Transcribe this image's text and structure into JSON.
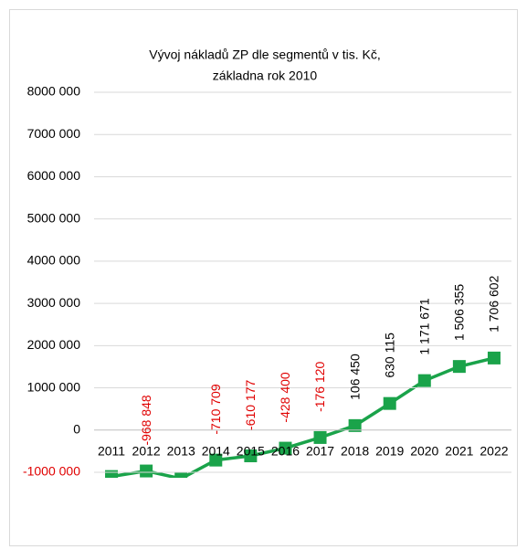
{
  "chart_data": {
    "type": "line",
    "title": [
      "Vývoj nákladů ZP dle segmentů v tis. Kč,",
      "základna rok 2010"
    ],
    "categories": [
      "2011",
      "2012",
      "2013",
      "2014",
      "2015",
      "2016",
      "2017",
      "2018",
      "2019",
      "2020",
      "2021",
      "2022"
    ],
    "series": [
      {
        "name": "Vývoj nákladů ZP",
        "color": "#1aa34a",
        "values": [
          -1100000,
          -968848,
          -1150000,
          -710709,
          -610177,
          -428400,
          -176120,
          106450,
          630115,
          1171671,
          1506355,
          1706602
        ],
        "value_labels": [
          null,
          "-968 848",
          null,
          "-710 709",
          "-610 177",
          "-428 400",
          "-176 120",
          "106 450",
          "630 115",
          "1 171 671",
          "1 506 355",
          "1 706 602"
        ]
      }
    ],
    "negative_color": "#e00000",
    "ylim": [
      -1000000,
      8000000
    ],
    "yticks": [
      {
        "value": -1000000,
        "label": "-1000 000"
      },
      0,
      {
        "value": 1000000,
        "label": "1000 000"
      },
      {
        "value": 2000000,
        "label": "2000 000"
      },
      {
        "value": 3000000,
        "label": "3000 000"
      },
      {
        "value": 4000000,
        "label": "4000 000"
      },
      {
        "value": 5000000,
        "label": "5000 000"
      },
      {
        "value": 6000000,
        "label": "6000 000"
      },
      {
        "value": 7000000,
        "label": "7000 000"
      },
      {
        "value": 8000000,
        "label": "8000 000"
      }
    ],
    "grid": true
  }
}
